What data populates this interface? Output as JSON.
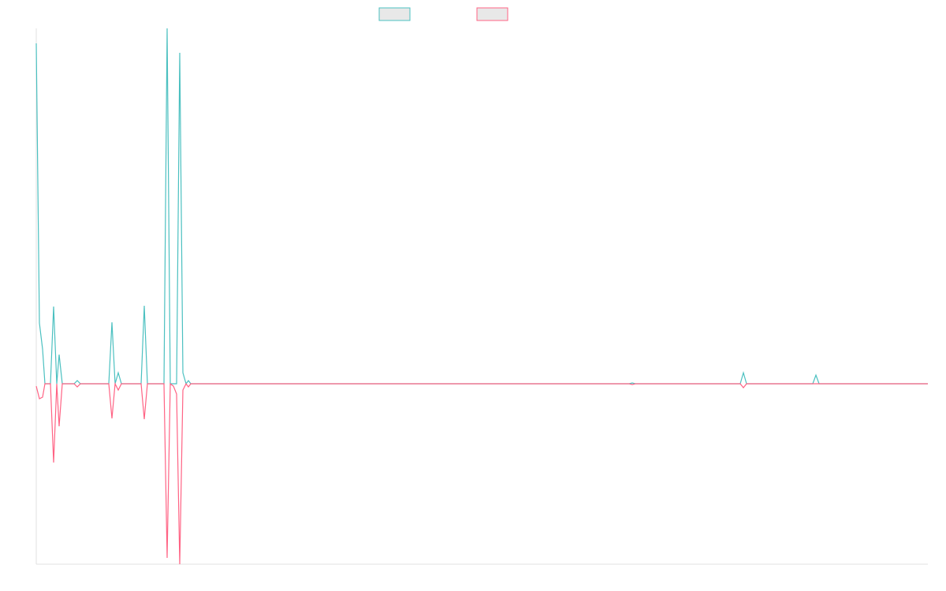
{
  "chart_data": {
    "type": "line",
    "x": [
      0,
      4,
      8,
      11,
      18,
      22,
      26,
      29,
      33,
      48,
      52,
      56,
      92,
      96,
      100,
      104,
      108,
      133,
      137,
      141,
      162,
      166,
      170,
      174,
      178,
      182,
      186,
      190,
      193,
      196,
      752,
      756,
      760,
      893,
      897,
      901,
      985,
      989,
      993,
      1131
    ],
    "series": [
      {
        "color": "#4bc0c0",
        "values": [
          432,
          77,
          44,
          0,
          0,
          98,
          0,
          37,
          0,
          0,
          4,
          0,
          0,
          78,
          0,
          14,
          0,
          0,
          99,
          0,
          0,
          451,
          0,
          0,
          0,
          420,
          14,
          0,
          4,
          0,
          0,
          1,
          0,
          0,
          14,
          0,
          0,
          11,
          0,
          0
        ]
      },
      {
        "color": "#ff6384",
        "values": [
          -3,
          -19,
          -17,
          0,
          0,
          -100,
          0,
          -54,
          0,
          0,
          -4,
          0,
          0,
          -44,
          0,
          -8,
          0,
          0,
          -45,
          0,
          0,
          -221,
          0,
          -3,
          -13,
          -229,
          -8,
          0,
          -4,
          0,
          0,
          -1,
          0,
          0,
          -5,
          0,
          0,
          0,
          0,
          0
        ]
      }
    ],
    "xlim": [
      0,
      1131
    ],
    "ylim": [
      -229,
      451
    ]
  }
}
